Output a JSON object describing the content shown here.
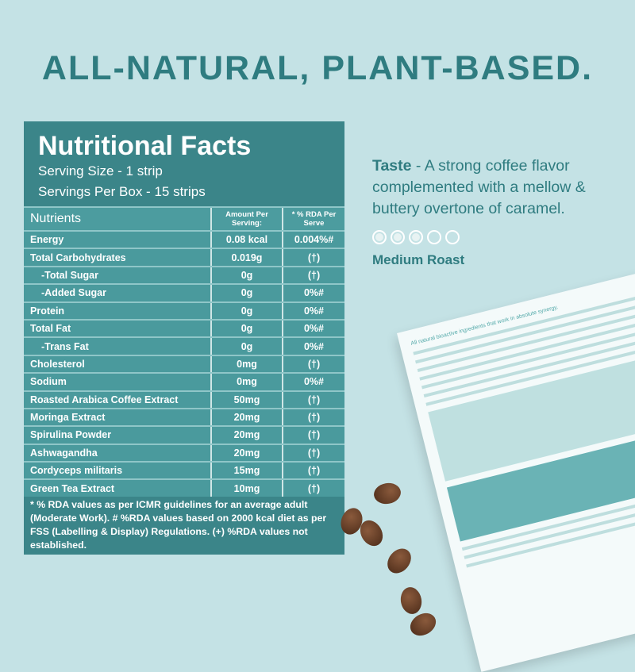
{
  "headline": "ALL-NATURAL, PLANT-BASED.",
  "facts": {
    "title": "Nutritional Facts",
    "serving_size": "Serving Size - 1 strip",
    "servings_per_box": "Servings Per Box - 15 strips",
    "columns": [
      "Nutrients",
      "Amount Per Serving:",
      "* % RDA Per Serve"
    ],
    "rows": [
      {
        "name": "Energy",
        "amount": "0.08 kcal",
        "rda": "0.004%#"
      },
      {
        "name": "Total Carbohydrates",
        "amount": "0.019g",
        "rda": "(†)"
      },
      {
        "name": "   -Total Sugar",
        "amount": "0g",
        "rda": "(†)"
      },
      {
        "name": "   -Added Sugar",
        "amount": "0g",
        "rda": "0%#"
      },
      {
        "name": "Protein",
        "amount": "0g",
        "rda": "0%#"
      },
      {
        "name": "Total Fat",
        "amount": "0g",
        "rda": "0%#"
      },
      {
        "name": "   -Trans Fat",
        "amount": "0g",
        "rda": "0%#"
      },
      {
        "name": "Cholesterol",
        "amount": "0mg",
        "rda": "(†)"
      },
      {
        "name": "Sodium",
        "amount": "0mg",
        "rda": "0%#"
      },
      {
        "name": "Roasted Arabica Coffee Extract",
        "amount": "50mg",
        "rda": "(†)"
      },
      {
        "name": "Moringa Extract",
        "amount": "20mg",
        "rda": "(†)"
      },
      {
        "name": "Spirulina Powder",
        "amount": "20mg",
        "rda": "(†)"
      },
      {
        "name": "Ashwagandha",
        "amount": "20mg",
        "rda": "(†)"
      },
      {
        "name": "Cordyceps militaris",
        "amount": "15mg",
        "rda": "(†)"
      },
      {
        "name": "Green Tea Extract",
        "amount": "10mg",
        "rda": "(†)"
      }
    ],
    "footnote": "* % RDA values as per ICMR guidelines for an average adult (Moderate Work). # %RDA values based on 2000 kcal diet as per FSS (Labelling & Display) Regulations. (+) %RDA values not established."
  },
  "taste": {
    "label": "Taste",
    "text": " - A strong coffee flavor complemented with a mellow & buttery overtone of caramel.",
    "roast_level": 3,
    "roast_max": 5,
    "roast_label": "Medium Roast"
  },
  "package": {
    "tagline": "All natural bioactive ingredients that work in absolute synergy."
  },
  "colors": {
    "background": "#c4e2e5",
    "accent": "#2f7c80",
    "panel": "#3b8589"
  }
}
